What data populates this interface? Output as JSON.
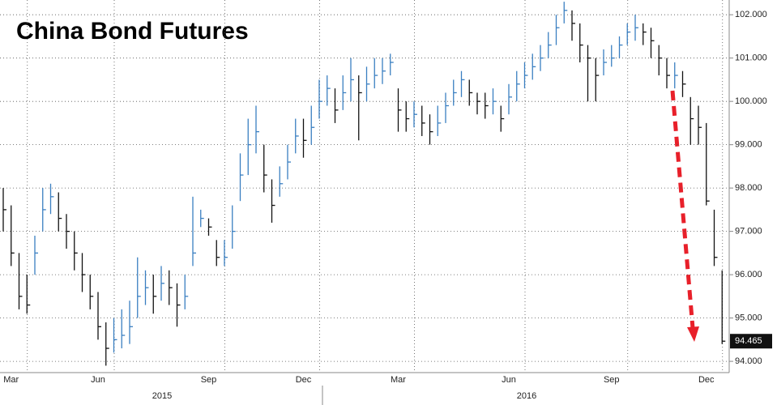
{
  "chart_data": {
    "type": "ohlc",
    "title": "China Bond Futures",
    "categories": [
      null,
      "Mar",
      null,
      null,
      null,
      null,
      null,
      null,
      null,
      null,
      null,
      null,
      "Jun",
      null,
      null,
      null,
      null,
      null,
      null,
      null,
      null,
      null,
      null,
      null,
      null,
      null,
      "Sep",
      null,
      null,
      null,
      null,
      null,
      null,
      null,
      null,
      null,
      null,
      null,
      "Dec",
      null,
      null,
      null,
      null,
      null,
      null,
      null,
      null,
      null,
      null,
      null,
      "Mar",
      null,
      null,
      null,
      null,
      null,
      null,
      null,
      null,
      null,
      null,
      null,
      null,
      null,
      "Jun",
      null,
      null,
      null,
      null,
      null,
      null,
      null,
      null,
      null,
      null,
      null,
      null,
      "Sep",
      null,
      null,
      null,
      null,
      null,
      null,
      null,
      null,
      null,
      null,
      null,
      "Dec",
      null,
      null
    ],
    "years": [
      "2015",
      "2016"
    ],
    "high": [
      98.0,
      97.6,
      96.5,
      96.0,
      96.9,
      98.0,
      98.1,
      97.9,
      97.4,
      97.0,
      96.5,
      96.0,
      95.6,
      94.9,
      95.0,
      95.2,
      95.4,
      96.4,
      96.1,
      96.0,
      96.2,
      96.1,
      95.8,
      96.0,
      97.8,
      97.5,
      97.3,
      96.8,
      96.8,
      97.6,
      98.8,
      99.6,
      99.9,
      99.0,
      98.2,
      98.5,
      99.0,
      99.6,
      99.6,
      99.9,
      100.5,
      100.6,
      100.3,
      100.6,
      101.0,
      100.6,
      100.8,
      101.0,
      101.0,
      101.1,
      100.3,
      100.0,
      100.0,
      99.9,
      99.7,
      99.9,
      100.2,
      100.5,
      100.7,
      100.5,
      100.2,
      100.2,
      100.3,
      99.9,
      100.4,
      100.7,
      100.9,
      101.1,
      101.3,
      101.6,
      102.0,
      102.3,
      102.1,
      101.8,
      101.3,
      101.0,
      101.2,
      101.3,
      101.5,
      101.8,
      102.0,
      101.8,
      101.7,
      101.3,
      101.0,
      100.9,
      100.7,
      100.1,
      99.9,
      99.5,
      97.5,
      96.1
    ],
    "low": [
      97.0,
      96.2,
      95.2,
      95.1,
      96.0,
      97.0,
      97.4,
      97.0,
      96.6,
      96.1,
      95.6,
      95.2,
      94.5,
      93.9,
      94.2,
      94.3,
      94.4,
      95.0,
      95.3,
      95.1,
      95.4,
      95.3,
      94.8,
      95.2,
      96.2,
      97.1,
      96.9,
      96.2,
      96.2,
      96.6,
      97.7,
      98.3,
      98.8,
      97.9,
      97.2,
      97.8,
      98.2,
      98.8,
      98.7,
      99.0,
      99.6,
      99.9,
      99.5,
      99.8,
      100.0,
      99.1,
      100.0,
      100.3,
      100.4,
      100.6,
      99.3,
      99.3,
      99.4,
      99.2,
      99.0,
      99.2,
      99.5,
      99.9,
      100.1,
      99.9,
      99.7,
      99.6,
      99.7,
      99.3,
      99.7,
      100.0,
      100.3,
      100.5,
      100.7,
      101.0,
      101.3,
      101.8,
      101.4,
      100.9,
      100.0,
      100.0,
      100.6,
      100.8,
      101.0,
      101.3,
      101.4,
      101.3,
      101.0,
      100.6,
      100.3,
      100.3,
      100.1,
      99.0,
      99.0,
      97.6,
      96.2,
      94.4
    ],
    "close": [
      97.5,
      96.5,
      95.5,
      95.3,
      96.5,
      97.5,
      97.8,
      97.3,
      97.0,
      96.5,
      96.0,
      95.5,
      94.8,
      94.3,
      94.5,
      94.6,
      94.8,
      95.5,
      95.7,
      95.5,
      95.8,
      95.7,
      95.3,
      95.5,
      96.5,
      97.3,
      97.1,
      96.4,
      96.4,
      97.0,
      98.3,
      99.0,
      99.3,
      98.3,
      97.6,
      98.1,
      98.6,
      99.2,
      99.1,
      99.4,
      100.0,
      100.3,
      99.8,
      100.2,
      100.5,
      100.2,
      100.4,
      100.6,
      100.7,
      100.9,
      99.8,
      99.6,
      99.7,
      99.5,
      99.3,
      99.5,
      99.9,
      100.2,
      100.5,
      100.2,
      100.0,
      99.9,
      100.0,
      99.6,
      100.1,
      100.4,
      100.6,
      100.8,
      101.0,
      101.3,
      101.7,
      102.1,
      101.8,
      101.3,
      101.0,
      100.6,
      100.9,
      101.0,
      101.3,
      101.6,
      101.7,
      101.6,
      101.4,
      101.0,
      100.6,
      100.6,
      100.4,
      99.6,
      99.4,
      97.7,
      96.4,
      94.465
    ],
    "up_color": "#3a7fc1",
    "down_color": "#111111",
    "ylim": [
      93.74,
      102.34
    ],
    "yticks": [
      {
        "value": 94,
        "label": "94.000"
      },
      {
        "value": 95,
        "label": "95.000"
      },
      {
        "value": 96,
        "label": "96.000"
      },
      {
        "value": 97,
        "label": "97.000"
      },
      {
        "value": 98,
        "label": "98.000"
      },
      {
        "value": 99,
        "label": "99.000"
      },
      {
        "value": 100,
        "label": "100.000"
      },
      {
        "value": 101,
        "label": "101.000"
      },
      {
        "value": 102,
        "label": "102.000"
      }
    ],
    "grid": true
  }
}
